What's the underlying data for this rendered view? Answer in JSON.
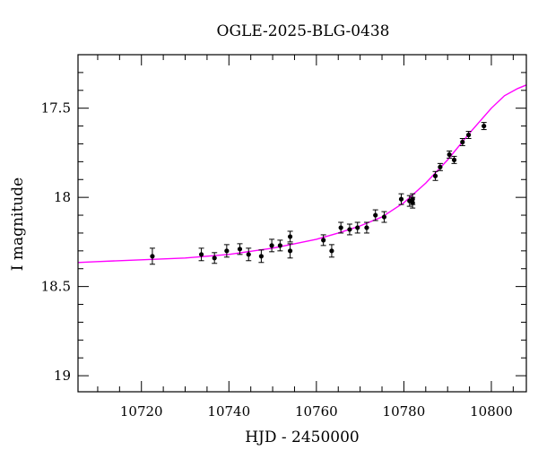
{
  "chart_data": {
    "type": "scatter",
    "title": "OGLE-2025-BLG-0438",
    "xlabel": "HJD - 2450000",
    "ylabel": "I magnitude",
    "xlim": [
      10705.5,
      10808
    ],
    "ylim": [
      19.09,
      17.2
    ],
    "y_inverted": true,
    "xticks_major": [
      10720,
      10740,
      10760,
      10780,
      10800
    ],
    "xtick_labels": [
      "10720",
      "10740",
      "10760",
      "10780",
      "10800"
    ],
    "yticks_major": [
      17.5,
      18,
      18.5,
      19
    ],
    "ytick_labels": [
      "17.5",
      "18",
      "18.5",
      "19"
    ],
    "grid": false,
    "series": [
      {
        "kind": "points_with_errorbars",
        "color": "#000000",
        "points": [
          {
            "x": 10722.5,
            "y": 18.33,
            "err": 0.045
          },
          {
            "x": 10733.7,
            "y": 18.32,
            "err": 0.035
          },
          {
            "x": 10736.7,
            "y": 18.34,
            "err": 0.03
          },
          {
            "x": 10739.5,
            "y": 18.3,
            "err": 0.035
          },
          {
            "x": 10742.5,
            "y": 18.29,
            "err": 0.03
          },
          {
            "x": 10744.5,
            "y": 18.32,
            "err": 0.035
          },
          {
            "x": 10747.4,
            "y": 18.33,
            "err": 0.035
          },
          {
            "x": 10749.8,
            "y": 18.27,
            "err": 0.035
          },
          {
            "x": 10751.7,
            "y": 18.27,
            "err": 0.03
          },
          {
            "x": 10754.0,
            "y": 18.22,
            "err": 0.03
          },
          {
            "x": 10754.0,
            "y": 18.3,
            "err": 0.04
          },
          {
            "x": 10761.6,
            "y": 18.24,
            "err": 0.03
          },
          {
            "x": 10763.5,
            "y": 18.3,
            "err": 0.035
          },
          {
            "x": 10765.6,
            "y": 18.17,
            "err": 0.03
          },
          {
            "x": 10767.6,
            "y": 18.18,
            "err": 0.03
          },
          {
            "x": 10769.4,
            "y": 18.17,
            "err": 0.03
          },
          {
            "x": 10771.5,
            "y": 18.17,
            "err": 0.03
          },
          {
            "x": 10773.5,
            "y": 18.1,
            "err": 0.03
          },
          {
            "x": 10775.5,
            "y": 18.11,
            "err": 0.03
          },
          {
            "x": 10779.4,
            "y": 18.01,
            "err": 0.03
          },
          {
            "x": 10781.3,
            "y": 18.02,
            "err": 0.03
          },
          {
            "x": 10782.0,
            "y": 18.01,
            "err": 0.03
          },
          {
            "x": 10782.0,
            "y": 18.03,
            "err": 0.03
          },
          {
            "x": 10787.2,
            "y": 17.88,
            "err": 0.025
          },
          {
            "x": 10788.3,
            "y": 17.83,
            "err": 0.02
          },
          {
            "x": 10790.4,
            "y": 17.76,
            "err": 0.02
          },
          {
            "x": 10791.5,
            "y": 17.79,
            "err": 0.02
          },
          {
            "x": 10793.4,
            "y": 17.69,
            "err": 0.02
          },
          {
            "x": 10794.8,
            "y": 17.65,
            "err": 0.02
          },
          {
            "x": 10798.3,
            "y": 17.6,
            "err": 0.02
          }
        ]
      },
      {
        "kind": "model_curve",
        "color": "#ff00ff",
        "x": [
          10705.5,
          10710,
          10720,
          10730,
          10740,
          10750,
          10755,
          10760,
          10765,
          10770,
          10775,
          10780,
          10785,
          10790,
          10795,
          10800,
          10803,
          10806,
          10808
        ],
        "y": [
          18.365,
          18.36,
          18.35,
          18.34,
          18.32,
          18.285,
          18.26,
          18.235,
          18.2,
          18.16,
          18.11,
          18.03,
          17.92,
          17.79,
          17.64,
          17.5,
          17.43,
          17.39,
          17.37
        ]
      }
    ]
  }
}
